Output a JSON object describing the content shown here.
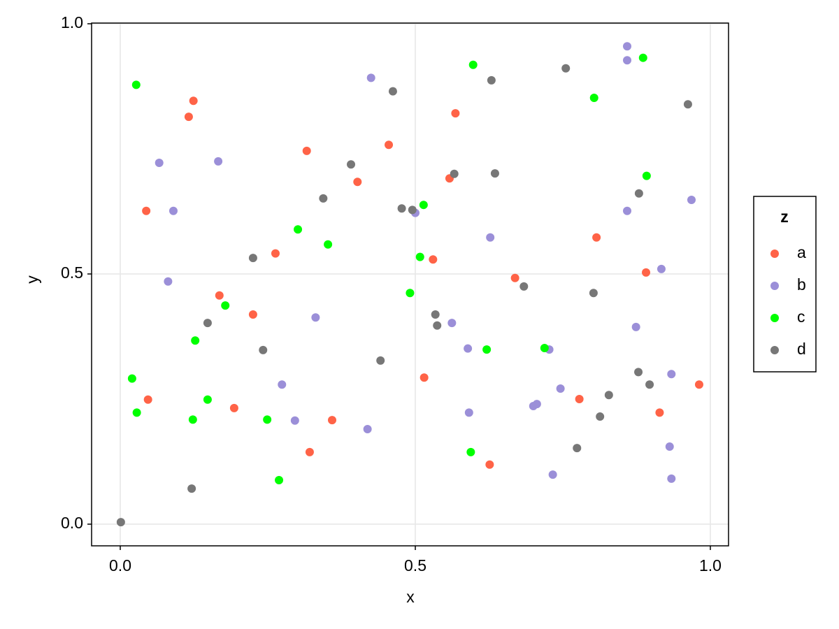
{
  "chart_data": {
    "type": "scatter",
    "xlabel": "x",
    "ylabel": "y",
    "legend_title": "z",
    "xlim": [
      -0.0486,
      1.0308
    ],
    "ylim": [
      -0.0433,
      1.0014
    ],
    "xticks": [
      {
        "value": 0,
        "label": "0.0"
      },
      {
        "value": 0.5,
        "label": "0.5"
      },
      {
        "value": 1,
        "label": "1.0"
      }
    ],
    "yticks": [
      {
        "value": 0,
        "label": "0.0"
      },
      {
        "value": 0.5,
        "label": "0.5"
      },
      {
        "value": 1,
        "label": "1.0"
      }
    ],
    "grid": true,
    "legend": "right",
    "series": [
      {
        "name": "a",
        "color": "#ff6347",
        "x": [
          0.124,
          0.116,
          0.044,
          0.316,
          0.455,
          0.568,
          0.402,
          0.558,
          0.263,
          0.53,
          0.168,
          0.225,
          0.669,
          0.891,
          0.807,
          0.047,
          0.193,
          0.359,
          0.515,
          0.321,
          0.626,
          0.778,
          0.914,
          0.981
        ],
        "values": [
          0.846,
          0.814,
          0.626,
          0.746,
          0.758,
          0.821,
          0.684,
          0.691,
          0.541,
          0.529,
          0.457,
          0.419,
          0.492,
          0.503,
          0.573,
          0.249,
          0.232,
          0.208,
          0.293,
          0.144,
          0.119,
          0.25,
          0.223,
          0.279
        ]
      },
      {
        "name": "b",
        "color": "#9b8fd8",
        "x": [
          0.859,
          0.859,
          0.425,
          0.066,
          0.166,
          0.09,
          0.081,
          0.5,
          0.627,
          0.968,
          0.859,
          0.917,
          0.874,
          0.331,
          0.562,
          0.589,
          0.727,
          0.274,
          0.296,
          0.419,
          0.591,
          0.7,
          0.706,
          0.746,
          0.934,
          0.931,
          0.934,
          0.733
        ],
        "values": [
          0.955,
          0.927,
          0.892,
          0.722,
          0.725,
          0.626,
          0.485,
          0.622,
          0.573,
          0.648,
          0.626,
          0.51,
          0.394,
          0.413,
          0.402,
          0.351,
          0.349,
          0.279,
          0.207,
          0.19,
          0.223,
          0.236,
          0.24,
          0.271,
          0.3,
          0.155,
          0.091,
          0.099
        ]
      },
      {
        "name": "c",
        "color": "#00ff00",
        "x": [
          0.027,
          0.598,
          0.886,
          0.803,
          0.892,
          0.514,
          0.301,
          0.352,
          0.508,
          0.491,
          0.178,
          0.127,
          0.621,
          0.719,
          0.02,
          0.028,
          0.148,
          0.123,
          0.249,
          0.594,
          0.269
        ],
        "values": [
          0.878,
          0.918,
          0.932,
          0.852,
          0.696,
          0.638,
          0.589,
          0.559,
          0.534,
          0.462,
          0.437,
          0.367,
          0.349,
          0.352,
          0.291,
          0.223,
          0.249,
          0.209,
          0.209,
          0.144,
          0.088
        ]
      },
      {
        "name": "d",
        "color": "#777777",
        "x": [
          0.462,
          0.629,
          0.755,
          0.962,
          0.391,
          0.635,
          0.566,
          0.344,
          0.477,
          0.495,
          0.879,
          0.225,
          0.684,
          0.802,
          0.534,
          0.537,
          0.148,
          0.242,
          0.441,
          0.878,
          0.897,
          0.828,
          0.813,
          0.774,
          0.121,
          0.001
        ],
        "values": [
          0.865,
          0.887,
          0.911,
          0.839,
          0.719,
          0.701,
          0.7,
          0.651,
          0.631,
          0.628,
          0.661,
          0.532,
          0.475,
          0.462,
          0.419,
          0.397,
          0.402,
          0.348,
          0.327,
          0.304,
          0.279,
          0.258,
          0.215,
          0.152,
          0.071,
          0.004
        ]
      }
    ]
  }
}
